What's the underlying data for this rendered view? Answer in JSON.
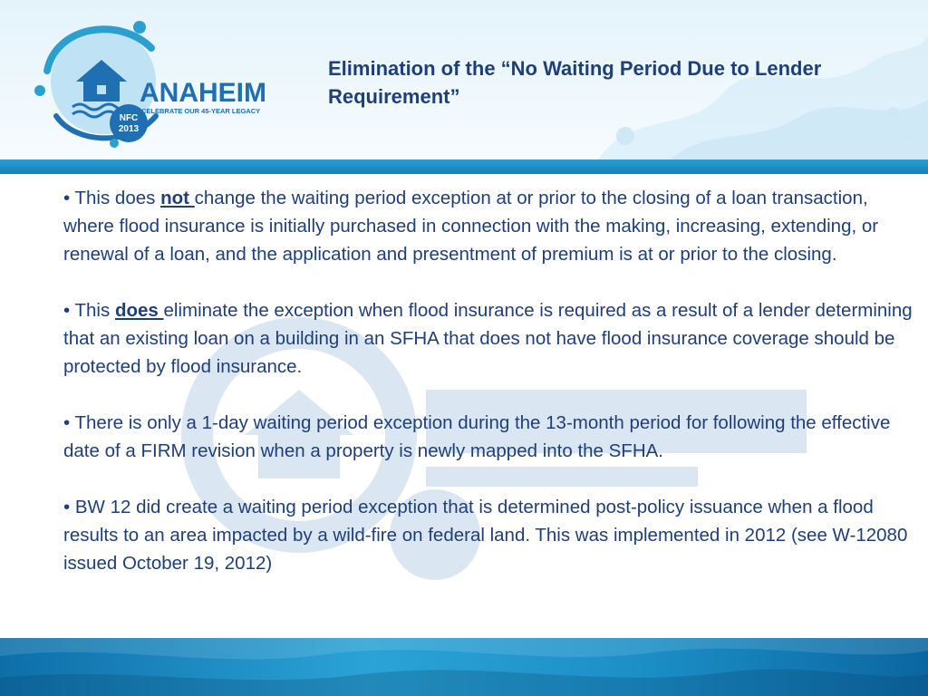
{
  "logo": {
    "brand": "ANAHEIM",
    "tagline": "CELEBRATE OUR 45-YEAR LEGACY",
    "badge_line1": "NFC",
    "badge_line2": "2013"
  },
  "slide": {
    "title": "Elimination of the “No Waiting Period Due to Lender Requirement”",
    "bullets": [
      {
        "pre": "• This does ",
        "emph": "not ",
        "post": "change the waiting period exception at or prior to the closing of a loan transaction, where flood insurance is initially purchased in connection with the making, increasing, extending, or renewal of a loan, and the application and presentment of premium is at or prior to the closing."
      },
      {
        "pre": "• This ",
        "emph": "does ",
        "post": "eliminate the exception when flood insurance is required as a result of a lender determining that an existing loan on a building in an SFHA that does not have flood insurance coverage should be protected by flood insurance."
      },
      {
        "text": "• There is only a 1-day waiting period exception during the 13-month period for following the effective date of a FIRM revision when a property is newly mapped into the SFHA."
      },
      {
        "text": "• BW 12 did create a waiting period exception that is determined post-policy issuance when a flood results to an area impacted by a wild-fire on federal land. This was implemented in 2012 (see W-12080 issued October 19, 2012)"
      }
    ]
  },
  "colors": {
    "title_text": "#1f3f78",
    "accent_blue": "#1b8ec6",
    "logo_blue": "#1f6fb3"
  }
}
